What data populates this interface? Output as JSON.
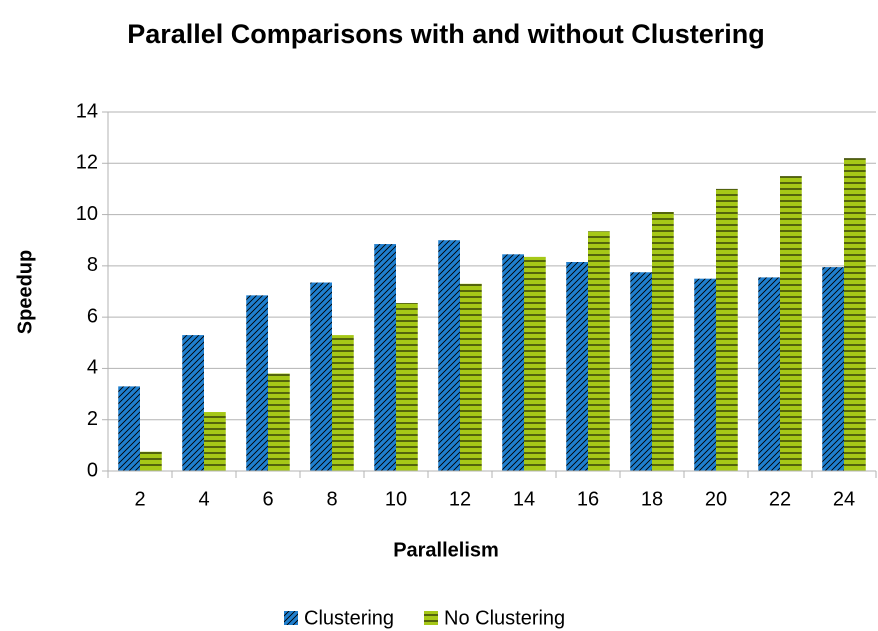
{
  "chart_data": {
    "type": "bar",
    "title": "Parallel Comparisons with and without Clustering",
    "x_label": "Parallelism",
    "y_label": "Speedup",
    "categories": [
      2,
      4,
      6,
      8,
      10,
      12,
      14,
      16,
      18,
      20,
      22,
      24
    ],
    "series": [
      {
        "name": "Clustering",
        "color": "#1f7fcf",
        "pattern": "diagonal",
        "values": [
          3.3,
          5.3,
          6.85,
          7.35,
          8.85,
          9.0,
          8.45,
          8.15,
          7.75,
          7.5,
          7.55,
          7.95
        ]
      },
      {
        "name": "No Clustering",
        "color": "#a6c817",
        "pattern": "horizontal",
        "values": [
          0.75,
          2.3,
          3.8,
          5.3,
          6.55,
          7.3,
          8.35,
          9.35,
          10.1,
          11.0,
          11.5,
          12.2
        ]
      }
    ],
    "ylim": [
      0,
      14
    ],
    "yticks": [
      0,
      2,
      4,
      6,
      8,
      10,
      12,
      14
    ],
    "grid": true,
    "legend": "bottom"
  }
}
